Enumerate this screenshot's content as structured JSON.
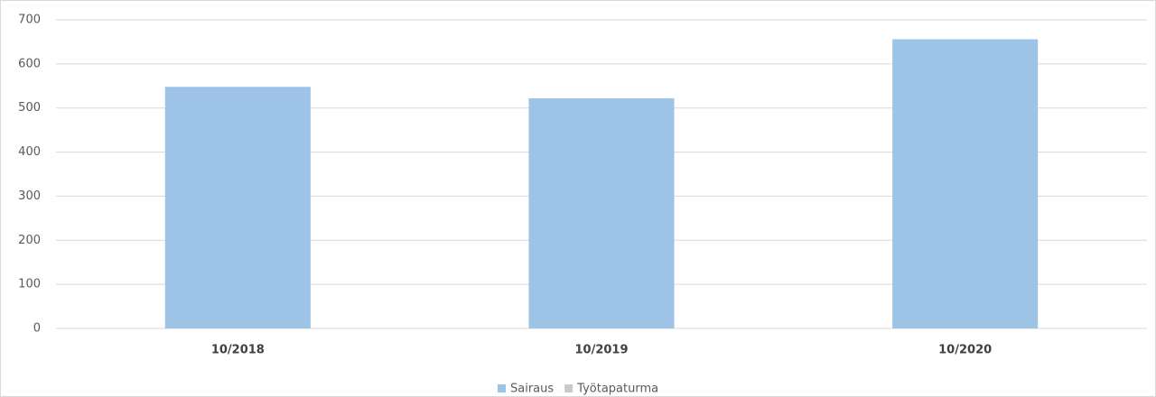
{
  "chart_data": {
    "type": "bar",
    "stacked": true,
    "categories": [
      "10/2018",
      "10/2019",
      "10/2020"
    ],
    "series": [
      {
        "name": "Sairaus",
        "color": "#9dc3e6",
        "values": [
          548,
          522,
          656
        ]
      },
      {
        "name": "Työtapaturma",
        "color": "#c9c9c9",
        "values": [
          0,
          0,
          0
        ]
      }
    ],
    "ylim": [
      0,
      700
    ],
    "yticks": [
      0,
      100,
      200,
      300,
      400,
      500,
      600,
      700
    ],
    "grid": true,
    "legend": "bottom"
  }
}
